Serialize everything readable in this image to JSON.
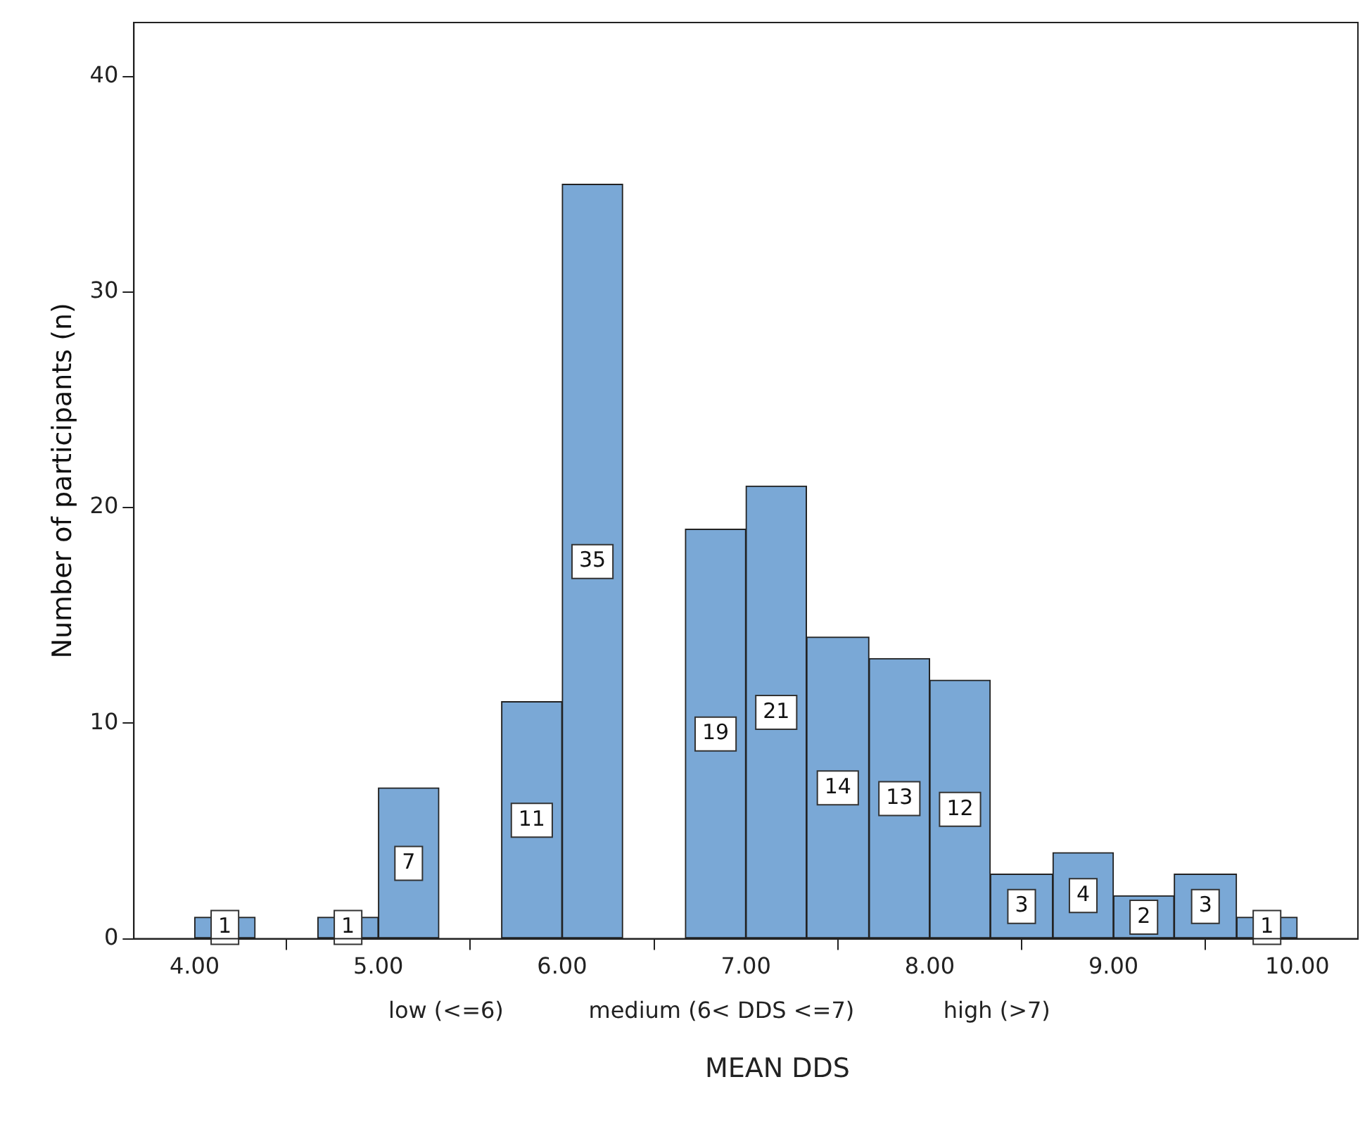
{
  "chart_data": {
    "type": "histogram",
    "xlabel": "MEAN DDS",
    "ylabel": "Number of participants (n)",
    "bins": [
      4.0,
      4.33,
      4.67,
      5.0,
      5.33,
      5.67,
      6.0,
      6.33,
      6.67,
      7.0,
      7.33,
      7.67,
      8.0,
      8.33,
      8.67,
      9.0,
      9.33,
      9.67,
      10.0
    ],
    "values": [
      1,
      0,
      1,
      7,
      0,
      11,
      35,
      0,
      19,
      21,
      14,
      13,
      12,
      3,
      4,
      2,
      3,
      1
    ],
    "value_labels": [
      "1",
      null,
      "1",
      "7",
      null,
      "11",
      "35",
      null,
      "19",
      "21",
      "14",
      "13",
      "12",
      "3",
      "4",
      "2",
      "3",
      "1"
    ],
    "color": "#7aa8d6",
    "xlim": [
      3.67,
      10.33
    ],
    "xticks": [
      {
        "value": 4,
        "label": "4.00"
      },
      {
        "value": 5,
        "label": "5.00"
      },
      {
        "value": 6,
        "label": "6.00"
      },
      {
        "value": 7,
        "label": "7.00"
      },
      {
        "value": 8,
        "label": "8.00"
      },
      {
        "value": 9,
        "label": "9.00"
      },
      {
        "value": 10,
        "label": "10.00"
      }
    ],
    "ylim": [
      0,
      42.5
    ],
    "yticks": [
      0,
      10,
      20,
      30,
      40
    ],
    "annotations": [
      "low (<=6)",
      "medium (6< DDS <=7)",
      "high (>7)"
    ],
    "grid": false,
    "legend": false
  }
}
